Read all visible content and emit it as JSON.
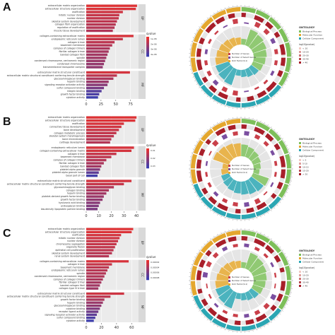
{
  "figure": {
    "panels": [
      {
        "letter": "A",
        "legend_title": "qvalue",
        "legend_values": [
          "1e-06",
          "2e-06",
          "3e-06",
          "4e-06"
        ],
        "x_ticks": [
          "0",
          "25",
          "50",
          "75"
        ],
        "facets": [
          "BP",
          "CC",
          "MF"
        ],
        "bars": [
          {
            "label": "extracellular matrix organization",
            "value": 86,
            "q": 0.05
          },
          {
            "label": "extracellular structure organization",
            "value": 84,
            "q": 0.08
          },
          {
            "label": "ossification",
            "value": 62,
            "q": 0.15
          },
          {
            "label": "mitotic nuclear division",
            "value": 56,
            "q": 0.2
          },
          {
            "label": "nuclear division",
            "value": 55,
            "q": 0.22
          },
          {
            "label": "skeletal system development",
            "value": 52,
            "q": 0.25
          },
          {
            "label": "collagen fibril organization",
            "value": 50,
            "q": 0.28
          },
          {
            "label": "regulation of ossification",
            "value": 48,
            "q": 0.3
          },
          {
            "label": "muscle tissue development",
            "value": 45,
            "q": 0.32
          },
          {
            "label": "collagen-containing extracellular matrix",
            "value": 80,
            "q": 0.1
          },
          {
            "label": "endoplasmic reticulum lumen",
            "value": 62,
            "q": 0.2
          },
          {
            "label": "collagen trimer",
            "value": 48,
            "q": 0.25
          },
          {
            "label": "basement membrane",
            "value": 44,
            "q": 0.3
          },
          {
            "label": "complex of collagen trimers",
            "value": 40,
            "q": 0.35
          },
          {
            "label": "fibrillar collagen trimer",
            "value": 38,
            "q": 0.38
          },
          {
            "label": "banded collagen fibril",
            "value": 36,
            "q": 0.4
          },
          {
            "label": "spindle",
            "value": 34,
            "q": 0.42
          },
          {
            "label": "condensed chromosome, centromeric region",
            "value": 32,
            "q": 0.45
          },
          {
            "label": "condensed chromosome",
            "value": 30,
            "q": 0.48
          },
          {
            "label": "transmembrane transporter complex",
            "value": 28,
            "q": 0.5
          },
          {
            "label": "extracellular matrix structural constituent",
            "value": 74,
            "q": 0.12
          },
          {
            "label": "extracellular matrix structural constituent conferring tensile strength",
            "value": 52,
            "q": 0.25
          },
          {
            "label": "glycosaminoglycan binding",
            "value": 46,
            "q": 0.35
          },
          {
            "label": "heparin binding",
            "value": 38,
            "q": 0.45
          },
          {
            "label": "signaling receptor activator activity",
            "value": 36,
            "q": 0.55
          },
          {
            "label": "sulfur compound binding",
            "value": 30,
            "q": 0.65
          },
          {
            "label": "integrin binding",
            "value": 26,
            "q": 0.85
          },
          {
            "label": "growth factor binding",
            "value": 22,
            "q": 0.9
          },
          {
            "label": "cytokine activity",
            "value": 20,
            "q": 0.98
          }
        ],
        "facet_sizes": [
          9,
          11,
          9
        ],
        "ontology_title": "ONTOLOGY",
        "ontology_items": [
          "Biological Process",
          "Molecular Function",
          "Cellular Component"
        ],
        "count_title": "log10(pvalue)",
        "count_items": [
          "< 10",
          "10-20",
          "20-30",
          "30-40",
          "> 40"
        ],
        "center_legend": [
          "Number of Genes",
          "Number of Select Genes",
          "Rich Factor(0-1)"
        ]
      },
      {
        "letter": "B",
        "legend_title": "qvalue",
        "legend_values": [
          "0.01",
          "0.02",
          "0.03"
        ],
        "x_ticks": [
          "0",
          "10",
          "20",
          "30",
          "40"
        ],
        "facets": [
          "BP",
          "CC",
          "MF"
        ],
        "bars": [
          {
            "label": "extracellular matrix organization",
            "value": 40,
            "q": 0.05
          },
          {
            "label": "extracellular structure organization",
            "value": 39,
            "q": 0.07
          },
          {
            "label": "ossification",
            "value": 30,
            "q": 0.1
          },
          {
            "label": "connective tissue development",
            "value": 28,
            "q": 0.14
          },
          {
            "label": "bone development",
            "value": 26,
            "q": 0.18
          },
          {
            "label": "collagen metabolic process",
            "value": 24,
            "q": 0.22
          },
          {
            "label": "skeletal system morphogenesis",
            "value": 22,
            "q": 0.25
          },
          {
            "label": "bone mineralization",
            "value": 20,
            "q": 0.28
          },
          {
            "label": "cartilage development",
            "value": 19,
            "q": 0.3
          },
          {
            "label": "endoplasmic reticulum lumen",
            "value": 38,
            "q": 0.1
          },
          {
            "label": "collagen-containing extracellular matrix",
            "value": 36,
            "q": 0.12
          },
          {
            "label": "collagen trimer",
            "value": 24,
            "q": 0.2
          },
          {
            "label": "basement membrane",
            "value": 20,
            "q": 0.25
          },
          {
            "label": "complex of collagen trimers",
            "value": 16,
            "q": 0.3
          },
          {
            "label": "fibrillar collagen trimer",
            "value": 14,
            "q": 0.35
          },
          {
            "label": "banded collagen fibril",
            "value": 12,
            "q": 0.4
          },
          {
            "label": "platelet alpha granule",
            "value": 11,
            "q": 0.6
          },
          {
            "label": "platelet alpha granule lumen",
            "value": 10,
            "q": 0.8
          },
          {
            "label": "basal part of cell",
            "value": 9,
            "q": 0.95
          },
          {
            "label": "extracellular matrix structural constituent",
            "value": 36,
            "q": 0.12
          },
          {
            "label": "extracellular matrix structural constituent conferring tensile strength",
            "value": 30,
            "q": 0.2
          },
          {
            "label": "glycosaminoglycan binding",
            "value": 22,
            "q": 0.3
          },
          {
            "label": "collagen binding",
            "value": 18,
            "q": 0.35
          },
          {
            "label": "heparin binding",
            "value": 16,
            "q": 0.4
          },
          {
            "label": "platelet-derived growth factor binding",
            "value": 14,
            "q": 0.45
          },
          {
            "label": "growth factor binding",
            "value": 13,
            "q": 0.5
          },
          {
            "label": "hyaluronic acid binding",
            "value": 11,
            "q": 0.55
          },
          {
            "label": "proteoglycan binding",
            "value": 10,
            "q": 0.6
          },
          {
            "label": "low-density lipoprotein particle binding",
            "value": 9,
            "q": 0.62
          }
        ],
        "facet_sizes": [
          9,
          10,
          10
        ],
        "ontology_title": "ONTOLOGY",
        "ontology_items": [
          "Biological Process",
          "Molecular Function",
          "Cellular Component"
        ],
        "count_title": "log10(pvalue)",
        "count_items": [
          "< 5",
          "5-10",
          "10-15",
          "15-20",
          "> 20"
        ],
        "center_legend": [
          "Number of Genes",
          "Number of Select Genes",
          "Rich Factor(0-1)"
        ]
      },
      {
        "letter": "C",
        "legend_title": "qvalue",
        "legend_values": [
          "0.00002",
          "0.00004",
          "0.00006",
          "0.00008"
        ],
        "x_ticks": [
          "0",
          "20",
          "40",
          "60"
        ],
        "facets": [
          "BP",
          "CC",
          "MF"
        ],
        "bars": [
          {
            "label": "extracellular matrix organization",
            "value": 62,
            "q": 0.05
          },
          {
            "label": "extracellular structure organization",
            "value": 60,
            "q": 0.07
          },
          {
            "label": "ossification",
            "value": 46,
            "q": 0.12
          },
          {
            "label": "mitotic nuclear division",
            "value": 44,
            "q": 0.15
          },
          {
            "label": "nuclear division",
            "value": 42,
            "q": 0.18
          },
          {
            "label": "chromosome segregation",
            "value": 40,
            "q": 0.2
          },
          {
            "label": "organelle fission",
            "value": 38,
            "q": 0.22
          },
          {
            "label": "epithelial cell proliferation",
            "value": 36,
            "q": 0.25
          },
          {
            "label": "skeletal system development",
            "value": 34,
            "q": 0.28
          },
          {
            "label": "renal system development",
            "value": 30,
            "q": 0.3
          },
          {
            "label": "collagen-containing extracellular matrix",
            "value": 56,
            "q": 0.1
          },
          {
            "label": "collagen trimer",
            "value": 34,
            "q": 0.2
          },
          {
            "label": "basement membrane",
            "value": 30,
            "q": 0.25
          },
          {
            "label": "endoplasmic reticulum lumen",
            "value": 28,
            "q": 0.28
          },
          {
            "label": "spindle",
            "value": 26,
            "q": 0.3
          },
          {
            "label": "condensed chromosome, centromeric region",
            "value": 24,
            "q": 0.32
          },
          {
            "label": "complex of collagen trimers",
            "value": 22,
            "q": 0.35
          },
          {
            "label": "fibrillar collagen trimer",
            "value": 20,
            "q": 0.38
          },
          {
            "label": "banded collagen fibril",
            "value": 18,
            "q": 0.4
          },
          {
            "label": "collagen type IV trimer",
            "value": 16,
            "q": 0.42
          },
          {
            "label": "extracellular matrix structural constituent",
            "value": 50,
            "q": 0.15
          },
          {
            "label": "extracellular matrix structural constituent conferring tensile strength",
            "value": 32,
            "q": 0.25
          },
          {
            "label": "growth factor binding",
            "value": 24,
            "q": 0.35
          },
          {
            "label": "heparin binding",
            "value": 22,
            "q": 0.45
          },
          {
            "label": "glycosaminoglycan binding",
            "value": 20,
            "q": 0.5
          },
          {
            "label": "cytokine binding",
            "value": 18,
            "q": 0.6
          },
          {
            "label": "receptor ligand activity",
            "value": 16,
            "q": 0.7
          },
          {
            "label": "signaling receptor activator activity",
            "value": 14,
            "q": 0.8
          },
          {
            "label": "sulfur compound binding",
            "value": 12,
            "q": 0.9
          },
          {
            "label": "cytokine activity",
            "value": 10,
            "q": 0.98
          }
        ],
        "facet_sizes": [
          10,
          10,
          10
        ],
        "ontology_title": "ONTOLOGY",
        "ontology_items": [
          "Biological Process",
          "Molecular Function",
          "Cellular Component"
        ],
        "count_title": "log10(pvalue)",
        "count_items": [
          "< 10",
          "10-20",
          "20-30",
          "30-40",
          "> 40"
        ],
        "center_legend": [
          "Number of Genes",
          "Number of Select Genes",
          "Rich Factor(0-1)"
        ]
      }
    ]
  },
  "colors": {
    "bar_low_q": "#e8322f",
    "bar_high_q": "#3a3fb0",
    "bp": "#7dbf5a",
    "cc": "#e4a72e",
    "mf": "#2ba6b3",
    "count_ring": "#a81f2a",
    "inner_gray": "#d4d4d4"
  },
  "chart_data": [
    {
      "type": "bar",
      "panel": "A"
    },
    {
      "type": "bar",
      "panel": "B"
    },
    {
      "type": "bar",
      "panel": "C"
    }
  ]
}
